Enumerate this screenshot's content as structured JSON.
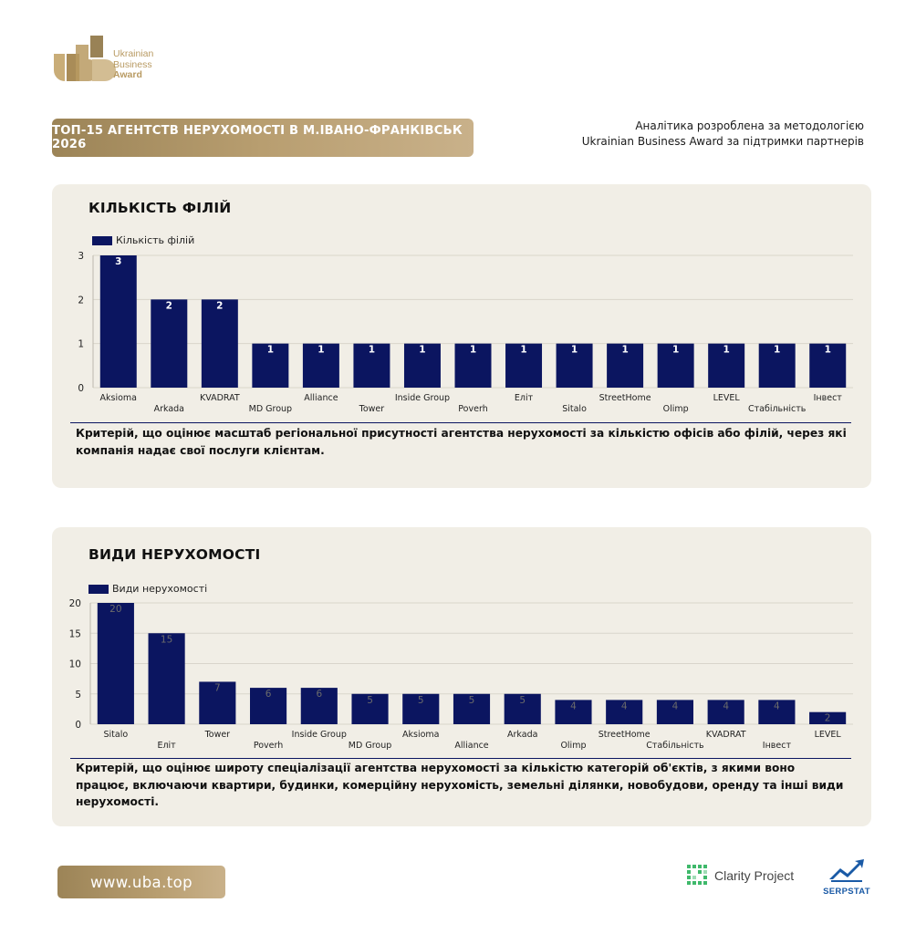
{
  "brand": {
    "logo_line1": "Ukrainian",
    "logo_line2": "Business",
    "logo_line3": "Award",
    "gold_color": "#b89a62"
  },
  "header": {
    "title": "ТОП-15 АГЕНТСТВ НЕРУХОМОСТІ В М.ІВАНО-ФРАНКІВСЬК 2026",
    "method_note": "Аналітика розроблена за методологією Ukrainian Business Award за підтримки партнерів"
  },
  "cards": [
    {
      "title": "КІЛЬКІСТЬ ФІЛІЙ",
      "legend": "Кількість філій",
      "criterion": "Критерій, що оцінює масштаб регіональної присутності агентства нерухомості за кількістю офісів або філій, через які компанія надає свої послуги клієнтам."
    },
    {
      "title": "ВИДИ НЕРУХОМОСТІ",
      "legend": "Види нерухомості",
      "criterion": "Критерій, що оцінює широту спеціалізації агентства нерухомості за кількістю категорій об'єктів, з якими воно працює, включаючи квартири, будинки, комерційну нерухомість, земельні ділянки, новобудови, оренду та інші види нерухомості."
    }
  ],
  "chart_data": [
    {
      "type": "bar",
      "title": "КІЛЬКІСТЬ ФІЛІЙ",
      "categories": [
        "Aksioma",
        "Arkada",
        "KVADRAT",
        "MD Group",
        "Alliance",
        "Tower",
        "Inside Group",
        "Poverh",
        "Еліт",
        "Sitalo",
        "StreetHome",
        "Olimp",
        "LEVEL",
        "Стабільність",
        "Інвест"
      ],
      "series": [
        {
          "name": "Кількість філій",
          "values": [
            3,
            2,
            2,
            1,
            1,
            1,
            1,
            1,
            1,
            1,
            1,
            1,
            1,
            1,
            1
          ]
        }
      ],
      "yticks": [
        0,
        1,
        2,
        3
      ],
      "ylim": [
        0,
        3
      ],
      "grid": true,
      "legend_position": "top-left",
      "bar_color": "#0b1560",
      "label_color": "#ffffff"
    },
    {
      "type": "bar",
      "title": "ВИДИ НЕРУХОМОСТІ",
      "categories": [
        "Sitalo",
        "Еліт",
        "Tower",
        "Poverh",
        "Inside Group",
        "MD Group",
        "Aksioma",
        "Alliance",
        "Arkada",
        "Olimp",
        "StreetHome",
        "Стабільність",
        "KVADRAT",
        "Інвест",
        "LEVEL"
      ],
      "series": [
        {
          "name": "Види нерухомості",
          "values": [
            20,
            15,
            7,
            6,
            6,
            5,
            5,
            5,
            5,
            4,
            4,
            4,
            4,
            4,
            2
          ]
        }
      ],
      "yticks": [
        0,
        5,
        10,
        15,
        20
      ],
      "ylim": [
        0,
        20
      ],
      "grid": true,
      "legend_position": "top-left",
      "bar_color": "#0b1560",
      "label_color": "#6b6b6b"
    }
  ],
  "footer": {
    "site": "www.uba.top",
    "partner1": "Clarity Project",
    "partner2": "SERPSTAT"
  }
}
